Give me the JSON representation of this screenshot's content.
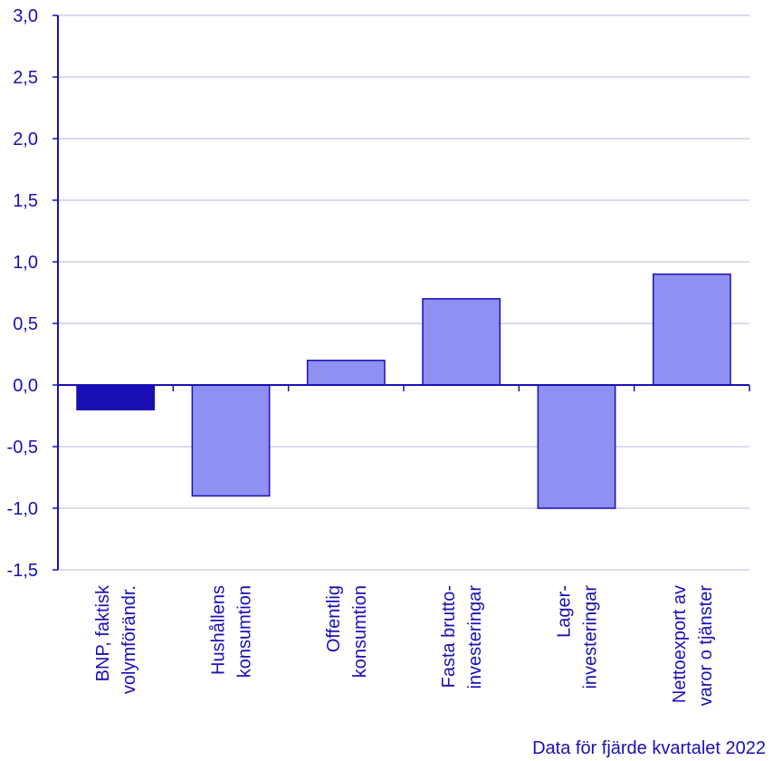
{
  "chart_data": {
    "type": "bar",
    "title": "",
    "xlabel": "",
    "ylabel": "",
    "ylim": [
      -1.5,
      3.0
    ],
    "yticks": [
      -1.5,
      -1.0,
      -0.5,
      0.0,
      0.5,
      1.0,
      1.5,
      2.0,
      2.5,
      3.0
    ],
    "ytick_labels": [
      "-1,5",
      "-1,0",
      "-0,5",
      "0,0",
      "0,5",
      "1,0",
      "1,5",
      "2,0",
      "2,5",
      "3,0"
    ],
    "grid": true,
    "categories": [
      [
        "BNP, faktisk",
        "volymförändr."
      ],
      [
        "Hushållens",
        "konsumtion"
      ],
      [
        "Offentlig",
        "konsumtion"
      ],
      [
        "Fasta brutto-",
        "investeringar"
      ],
      [
        "Lager-",
        "investeringar"
      ],
      [
        "Nettoexport av",
        "varor o tjänster"
      ]
    ],
    "values": [
      -0.2,
      -0.9,
      0.2,
      0.7,
      -1.0,
      0.9
    ],
    "bar_colors": [
      "#1a0fb5",
      "#8f90f2",
      "#8f90f2",
      "#8f90f2",
      "#8f90f2",
      "#8f90f2"
    ]
  },
  "colors": {
    "axis": "#1a0fb5",
    "grid": "#c4c4ec",
    "bar_outline": "#1a0fb5"
  },
  "footer": {
    "source_note": "Data för fjärde kvartalet 2022"
  }
}
